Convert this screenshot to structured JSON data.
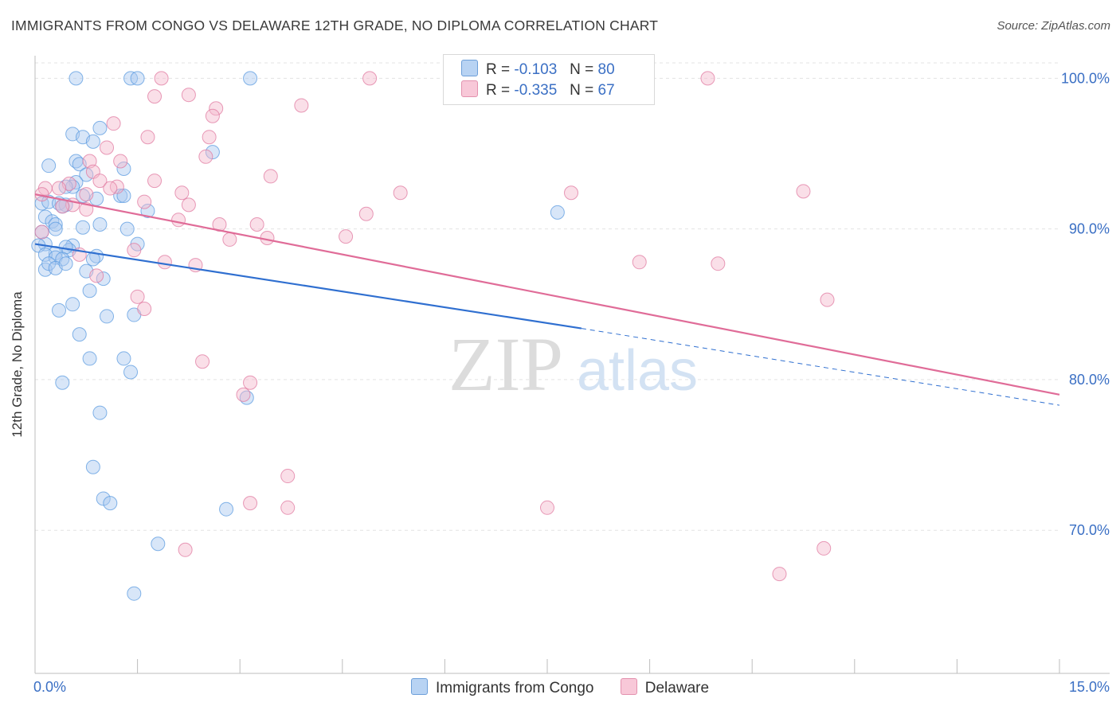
{
  "title": "IMMIGRANTS FROM CONGO VS DELAWARE 12TH GRADE, NO DIPLOMA CORRELATION CHART",
  "source": "Source: ZipAtlas.com",
  "watermark": {
    "zip": "ZIP",
    "atlas": "atlas"
  },
  "legend_top": {
    "rows": [
      {
        "r_label": "R =",
        "r_value": "-0.103",
        "n_label": "N =",
        "n_value": "80"
      },
      {
        "r_label": "R =",
        "r_value": "-0.335",
        "n_label": "N =",
        "n_value": "67"
      }
    ]
  },
  "chart_data": {
    "type": "scatter",
    "title": "IMMIGRANTS FROM CONGO VS DELAWARE 12TH GRADE, NO DIPLOMA CORRELATION CHART",
    "xlabel": "",
    "ylabel": "12th Grade, No Diploma",
    "xlim": [
      0,
      15
    ],
    "ylim": [
      60.5,
      101.5
    ],
    "x_tick_labels": [
      "0.0%",
      "15.0%"
    ],
    "y_ticks": [
      70,
      80,
      90,
      100
    ],
    "y_tick_labels": [
      "70.0%",
      "80.0%",
      "90.0%",
      "100.0%"
    ],
    "grid": true,
    "legend": "bottom-center",
    "series": [
      {
        "name": "Immigrants from Congo",
        "color": "#5b9be0",
        "fill": "#a9c8f0",
        "r": -0.103,
        "n": 80,
        "trend": {
          "x0": 0.0,
          "y0": 89.0,
          "x1": 8.0,
          "y1": 83.4,
          "dashed_to_x": 15.0,
          "dashed_to_y": 78.3
        },
        "points": [
          [
            0.6,
            100
          ],
          [
            1.4,
            100
          ],
          [
            1.5,
            100
          ],
          [
            3.15,
            100
          ],
          [
            0.55,
            96.3
          ],
          [
            0.95,
            96.7
          ],
          [
            0.7,
            96.1
          ],
          [
            0.85,
            95.8
          ],
          [
            2.6,
            95.1
          ],
          [
            0.2,
            94.2
          ],
          [
            0.6,
            94.5
          ],
          [
            0.65,
            94.3
          ],
          [
            1.3,
            94.0
          ],
          [
            0.75,
            93.6
          ],
          [
            0.6,
            93.1
          ],
          [
            0.55,
            92.8
          ],
          [
            0.45,
            92.8
          ],
          [
            0.7,
            92.2
          ],
          [
            0.9,
            92.0
          ],
          [
            1.25,
            92.2
          ],
          [
            1.3,
            92.2
          ],
          [
            0.1,
            91.7
          ],
          [
            0.2,
            91.8
          ],
          [
            0.35,
            91.7
          ],
          [
            0.45,
            91.6
          ],
          [
            0.4,
            91.5
          ],
          [
            1.65,
            91.2
          ],
          [
            7.65,
            91.1
          ],
          [
            0.15,
            90.8
          ],
          [
            0.25,
            90.5
          ],
          [
            0.3,
            90.3
          ],
          [
            0.3,
            90.0
          ],
          [
            0.7,
            90.1
          ],
          [
            0.95,
            90.3
          ],
          [
            1.35,
            90.0
          ],
          [
            0.1,
            89.8
          ],
          [
            0.15,
            89.0
          ],
          [
            0.05,
            88.9
          ],
          [
            0.55,
            88.9
          ],
          [
            0.5,
            88.6
          ],
          [
            0.45,
            88.8
          ],
          [
            0.3,
            88.4
          ],
          [
            0.15,
            88.3
          ],
          [
            0.3,
            88.1
          ],
          [
            0.4,
            88.0
          ],
          [
            0.9,
            88.2
          ],
          [
            0.85,
            88.0
          ],
          [
            1.5,
            89.0
          ],
          [
            0.15,
            87.3
          ],
          [
            0.2,
            87.7
          ],
          [
            0.3,
            87.4
          ],
          [
            0.45,
            87.7
          ],
          [
            0.75,
            87.2
          ],
          [
            1.0,
            86.7
          ],
          [
            0.8,
            85.9
          ],
          [
            0.55,
            85.0
          ],
          [
            0.35,
            84.6
          ],
          [
            1.05,
            84.2
          ],
          [
            1.45,
            84.3
          ],
          [
            0.65,
            83.0
          ],
          [
            0.8,
            81.4
          ],
          [
            1.3,
            81.4
          ],
          [
            1.4,
            80.5
          ],
          [
            0.4,
            79.8
          ],
          [
            3.1,
            78.8
          ],
          [
            0.95,
            77.8
          ],
          [
            0.85,
            74.2
          ],
          [
            1.0,
            72.1
          ],
          [
            1.1,
            71.8
          ],
          [
            2.8,
            71.4
          ],
          [
            1.8,
            69.1
          ],
          [
            1.45,
            65.8
          ]
        ]
      },
      {
        "name": "Delaware",
        "color": "#e07aa0",
        "fill": "#f5b8cc",
        "r": -0.335,
        "n": 67,
        "trend": {
          "x0": 0.0,
          "y0": 92.3,
          "x1": 15.0,
          "y1": 79.0
        },
        "points": [
          [
            1.85,
            100
          ],
          [
            4.9,
            100
          ],
          [
            9.85,
            100
          ],
          [
            2.25,
            98.9
          ],
          [
            1.75,
            98.8
          ],
          [
            3.9,
            98.2
          ],
          [
            2.65,
            98.0
          ],
          [
            2.6,
            97.5
          ],
          [
            1.15,
            97.0
          ],
          [
            2.55,
            96.1
          ],
          [
            1.65,
            96.1
          ],
          [
            1.05,
            95.4
          ],
          [
            2.5,
            94.8
          ],
          [
            1.25,
            94.5
          ],
          [
            0.8,
            94.5
          ],
          [
            0.85,
            93.8
          ],
          [
            3.45,
            93.5
          ],
          [
            1.75,
            93.2
          ],
          [
            0.95,
            93.2
          ],
          [
            0.5,
            93.0
          ],
          [
            1.2,
            92.8
          ],
          [
            1.1,
            92.7
          ],
          [
            0.15,
            92.7
          ],
          [
            0.35,
            92.7
          ],
          [
            2.15,
            92.4
          ],
          [
            5.35,
            92.4
          ],
          [
            7.85,
            92.4
          ],
          [
            11.25,
            92.5
          ],
          [
            0.1,
            92.3
          ],
          [
            0.75,
            92.3
          ],
          [
            1.6,
            91.8
          ],
          [
            2.25,
            91.6
          ],
          [
            0.55,
            91.6
          ],
          [
            0.4,
            91.5
          ],
          [
            0.75,
            91.3
          ],
          [
            4.85,
            91.0
          ],
          [
            2.1,
            90.6
          ],
          [
            2.7,
            90.3
          ],
          [
            3.25,
            90.3
          ],
          [
            0.1,
            89.8
          ],
          [
            3.4,
            89.4
          ],
          [
            4.55,
            89.5
          ],
          [
            2.85,
            89.3
          ],
          [
            1.45,
            88.6
          ],
          [
            0.65,
            88.3
          ],
          [
            1.9,
            87.8
          ],
          [
            2.35,
            87.6
          ],
          [
            8.85,
            87.8
          ],
          [
            10.0,
            87.7
          ],
          [
            0.9,
            86.9
          ],
          [
            1.5,
            85.5
          ],
          [
            11.6,
            85.3
          ],
          [
            1.6,
            84.7
          ],
          [
            2.45,
            81.2
          ],
          [
            3.15,
            79.8
          ],
          [
            3.05,
            79.0
          ],
          [
            3.7,
            73.6
          ],
          [
            3.15,
            71.8
          ],
          [
            3.7,
            71.5
          ],
          [
            7.5,
            71.5
          ],
          [
            2.2,
            68.7
          ],
          [
            11.55,
            68.8
          ],
          [
            10.9,
            67.1
          ]
        ]
      }
    ]
  }
}
